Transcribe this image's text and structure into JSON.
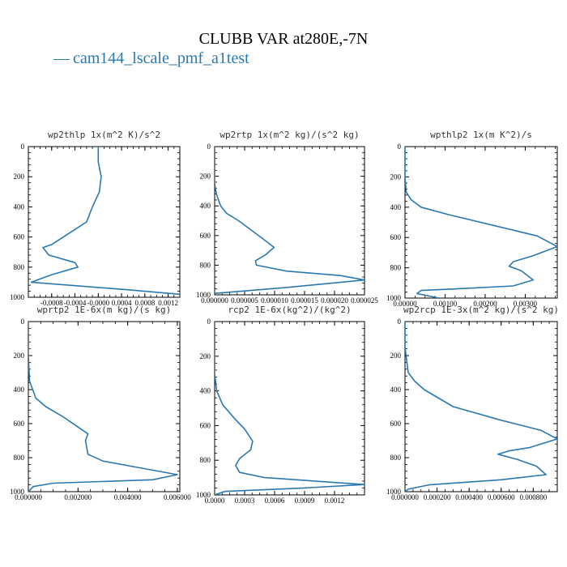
{
  "title": "CLUBB VAR at280E,-7N",
  "legend": {
    "symbol": "—",
    "label": "cam144_lscale_pmf_a1test"
  },
  "colors": {
    "series": "#2a78b0",
    "axis": "#000000"
  },
  "chart_data": [
    {
      "type": "line",
      "title": "wp2thlp   1x(m^2 K)/s^2",
      "xlim": [
        -0.0012,
        0.0014
      ],
      "ylim": [
        1000,
        0
      ],
      "xticks": [
        -0.0008,
        -0.0004,
        0.0,
        0.0004,
        0.0008,
        0.0012
      ],
      "xtick_labels": [
        "-0.0008",
        "-0.0004",
        "-0.0000",
        "0.0004",
        "0.0008",
        "0.0012"
      ],
      "yticks": [
        0,
        200,
        400,
        600,
        800,
        1000
      ],
      "ytick_labels": [
        "0",
        "200",
        "400",
        "600",
        "800",
        "1000"
      ],
      "x": [
        0.0,
        0.0,
        5e-05,
        2e-05,
        -0.0001,
        -0.0002,
        -0.0004,
        -0.0006,
        -0.0008,
        -0.00095,
        -0.00085,
        -0.0004,
        -0.00035,
        -0.0008,
        -0.00115,
        0.0005,
        0.0014
      ],
      "y": [
        0,
        100,
        200,
        300,
        400,
        500,
        550,
        600,
        650,
        670,
        720,
        770,
        800,
        850,
        900,
        950,
        980
      ]
    },
    {
      "type": "line",
      "title": "wp2rtp   1x(m^2 kg)/(s^2 kg)",
      "xlim": [
        0.0,
        2.5e-05
      ],
      "ylim": [
        1000,
        0
      ],
      "xticks": [
        0.0,
        5e-06,
        1e-05,
        1.5e-05,
        2e-05,
        2.5e-05
      ],
      "xtick_labels": [
        "0.000000",
        "0.000005",
        "0.000010",
        "0.000015",
        "0.000020",
        "0.000025"
      ],
      "yticks": [
        0,
        200,
        400,
        600,
        800,
        1000
      ],
      "ytick_labels": [
        "0",
        "200",
        "400",
        "600",
        "800",
        "1000"
      ],
      "x": [
        0.0,
        0.0,
        0.0,
        3e-07,
        1e-06,
        2e-06,
        4e-06,
        6e-06,
        8e-06,
        9.9e-06,
        8.5e-06,
        6.8e-06,
        7e-06,
        1.2e-05,
        2.1e-05,
        2.5e-05,
        1.2e-05,
        0.0
      ],
      "y": [
        0,
        100,
        250,
        320,
        400,
        450,
        500,
        560,
        620,
        680,
        730,
        770,
        800,
        840,
        870,
        900,
        950,
        990
      ]
    },
    {
      "type": "line",
      "title": "wpthlp2   1x(m K^2)/s",
      "xlim": [
        0.0,
        0.0038
      ],
      "ylim": [
        1000,
        0
      ],
      "xticks": [
        0.0,
        0.001,
        0.002,
        0.003
      ],
      "xtick_labels": [
        "0.00000",
        "0.00100",
        "0.00200",
        "0.00300"
      ],
      "yticks": [
        0,
        200,
        400,
        600,
        800,
        1000
      ],
      "ytick_labels": [
        "0",
        "200",
        "400",
        "600",
        "800",
        "1000"
      ],
      "x": [
        0.0,
        0.0,
        3e-05,
        0.00015,
        0.0004,
        0.0011,
        0.0022,
        0.0033,
        0.0038,
        0.0032,
        0.0027,
        0.0026,
        0.0029,
        0.0032,
        0.0027,
        0.0012,
        0.0004,
        0.0003,
        0.00085
      ],
      "y": [
        0,
        200,
        300,
        350,
        400,
        450,
        520,
        590,
        660,
        720,
        760,
        790,
        820,
        880,
        920,
        940,
        950,
        970,
        1000
      ]
    },
    {
      "type": "line",
      "title": "wprtp2   1E-6x(m kg)/(s kg)",
      "xlim": [
        0.0,
        0.0061
      ],
      "ylim": [
        1000,
        0
      ],
      "xticks": [
        0.0,
        0.002,
        0.004,
        0.006
      ],
      "xtick_labels": [
        "0.000000",
        "0.002000",
        "0.004000",
        "0.006000"
      ],
      "yticks": [
        0,
        200,
        400,
        600,
        800,
        1000
      ],
      "ytick_labels": [
        "0",
        "200",
        "400",
        "600",
        "800",
        "1000"
      ],
      "x": [
        0.0,
        0.0,
        5e-05,
        0.0003,
        0.0007,
        0.0014,
        0.002,
        0.0024,
        0.0023,
        0.0024,
        0.003,
        0.0045,
        0.006,
        0.005,
        0.001,
        0.0002,
        0.0
      ],
      "y": [
        0,
        200,
        350,
        450,
        500,
        560,
        620,
        660,
        700,
        780,
        820,
        860,
        900,
        930,
        950,
        970,
        1000
      ]
    },
    {
      "type": "line",
      "title": "rcp2   1E-6x(kg^2)/(kg^2)",
      "xlim": [
        0.0,
        0.0015
      ],
      "ylim": [
        1000,
        0
      ],
      "xticks": [
        0.0,
        0.0003,
        0.0006,
        0.0009,
        0.0012
      ],
      "xtick_labels": [
        "0.0000",
        "0.0003",
        "0.0006",
        "0.0009",
        "0.0012"
      ],
      "yticks": [
        0,
        200,
        400,
        600,
        800,
        1000
      ],
      "ytick_labels": [
        "0",
        "200",
        "400",
        "600",
        "800",
        "1000"
      ],
      "x": [
        0.0,
        0.0,
        2e-05,
        8e-05,
        0.0002,
        0.0003,
        0.00038,
        0.00036,
        0.00025,
        0.00021,
        0.00025,
        0.0005,
        0.001,
        0.0015,
        0.0009,
        0.0001,
        0.0
      ],
      "y": [
        0,
        300,
        400,
        480,
        560,
        620,
        690,
        740,
        790,
        830,
        870,
        900,
        920,
        940,
        960,
        980,
        1000
      ]
    },
    {
      "type": "line",
      "title": "wp2rcp   1E-3x(m^2 kg)/(s^2 kg)",
      "xlim": [
        0.0,
        0.00095
      ],
      "ylim": [
        1000,
        0
      ],
      "xticks": [
        0.0,
        0.0002,
        0.0004,
        0.0006,
        0.0008
      ],
      "xtick_labels": [
        "0.000000",
        "0.000200",
        "0.000400",
        "0.000600",
        "0.000800"
      ],
      "yticks": [
        0,
        200,
        400,
        600,
        800,
        1000
      ],
      "ytick_labels": [
        "0",
        "200",
        "400",
        "600",
        "800",
        "1000"
      ],
      "x": [
        0.0,
        0.0,
        2e-05,
        6e-05,
        0.00012,
        0.0003,
        0.0006,
        0.00085,
        0.00095,
        0.00078,
        0.00065,
        0.00058,
        0.0007,
        0.00082,
        0.00088,
        0.0006,
        0.00015,
        2e-05,
        0.0
      ],
      "y": [
        0,
        150,
        300,
        350,
        400,
        500,
        580,
        640,
        690,
        740,
        760,
        780,
        810,
        850,
        900,
        930,
        960,
        985,
        1000
      ]
    }
  ]
}
